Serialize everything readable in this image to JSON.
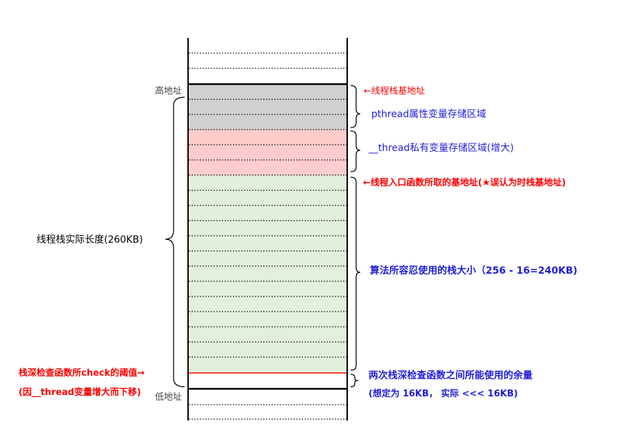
{
  "diagram": {
    "colors": {
      "pthread_region": "#d0d0d0",
      "thread_region": "#ffcccc",
      "usable_region": "#e2efda",
      "threshold_line": "#ff0000",
      "red_text": "#ff0000",
      "blue_text": "#1f1fd9"
    },
    "labels": {
      "high_address": "高地址",
      "low_address": "低地址",
      "stack_base": "←线程栈基地址",
      "pthread_area": "pthread属性变量存储区域",
      "thread_area": "__thread私有变量存储区域(增大)",
      "entry_base": "←线程入口函数所取的基地址(★误认为时栈基地址)",
      "actual_length": "线程栈实际长度(260KB)",
      "usable_size": "算法所容忍使用的栈大小（256 - 16=240KB)",
      "threshold_line1": "栈深检查函数所check的阈值→",
      "threshold_line2": "(因__thread变量增大而下移)",
      "margin_line1": "两次栈深检查函数之间所能使用的余量",
      "margin_line2": "(想定为 16KB， 实际 <<< 16KB)"
    }
  }
}
